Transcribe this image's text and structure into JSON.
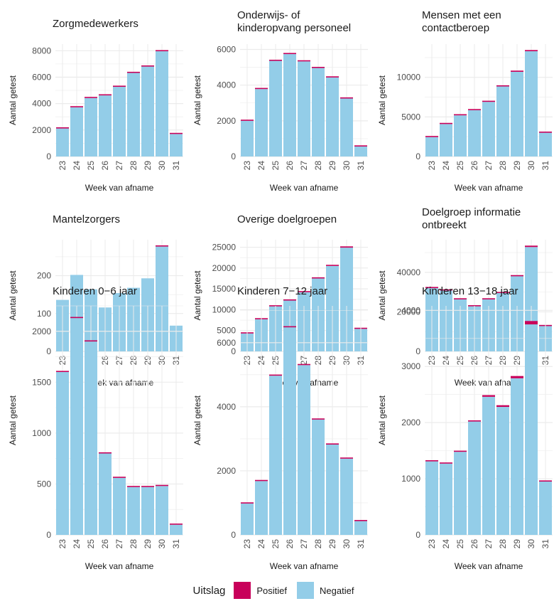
{
  "colors": {
    "positive": "#C8005A",
    "negative": "#93CDE8",
    "grid": "#EBEBEB"
  },
  "legend": {
    "title": "Uitslag",
    "positive_label": "Positief",
    "negative_label": "Negatief",
    "position": "bottom"
  },
  "chart_data": [
    {
      "type": "bar",
      "title": [
        "Zorgmedewerkers"
      ],
      "xlabel": "Week van afname",
      "ylabel": "Aantal getest",
      "categories": [
        "23",
        "24",
        "25",
        "26",
        "27",
        "28",
        "29",
        "30",
        "31"
      ],
      "yticks": [
        0,
        2000,
        4000,
        6000,
        8000
      ],
      "ylim": [
        0,
        8500
      ],
      "series": [
        {
          "name": "Negatief",
          "values": [
            2120,
            3720,
            4420,
            4620,
            5270,
            6320,
            6800,
            7960,
            1700
          ]
        },
        {
          "name": "Positief",
          "values": [
            20,
            60,
            40,
            40,
            40,
            40,
            80,
            60,
            20
          ]
        }
      ]
    },
    {
      "type": "bar",
      "title": [
        "Onderwijs- of",
        "kinderopvang personeel"
      ],
      "xlabel": "Week van afname",
      "ylabel": "Aantal getest",
      "categories": [
        "23",
        "24",
        "25",
        "26",
        "27",
        "28",
        "29",
        "30",
        "31"
      ],
      "yticks": [
        0,
        2000,
        4000,
        6000
      ],
      "ylim": [
        0,
        6300
      ],
      "series": [
        {
          "name": "Negatief",
          "values": [
            2000,
            3780,
            5360,
            5740,
            5330,
            4960,
            4430,
            3250,
            560
          ]
        },
        {
          "name": "Positief",
          "values": [
            10,
            20,
            30,
            30,
            30,
            30,
            30,
            50,
            5
          ]
        }
      ]
    },
    {
      "type": "bar",
      "title": [
        "Mensen met een",
        "contactberoep"
      ],
      "xlabel": "Week van afname",
      "ylabel": "Aantal getest",
      "categories": [
        "23",
        "24",
        "25",
        "26",
        "27",
        "28",
        "29",
        "30",
        "31"
      ],
      "yticks": [
        0,
        5000,
        10000
      ],
      "ylim": [
        0,
        14200
      ],
      "series": [
        {
          "name": "Negatief",
          "values": [
            2450,
            4100,
            5200,
            5850,
            6900,
            8850,
            10700,
            13300,
            3000
          ]
        },
        {
          "name": "Positief",
          "values": [
            20,
            60,
            50,
            50,
            50,
            60,
            150,
            150,
            40
          ]
        }
      ]
    },
    {
      "type": "bar",
      "title": [
        "Mantelzorgers"
      ],
      "xlabel": "Week van afname",
      "ylabel": "Aantal getest",
      "categories": [
        "23",
        "24",
        "25",
        "26",
        "27",
        "28",
        "29",
        "30",
        "31"
      ],
      "yticks": [
        0,
        100,
        200
      ],
      "ylim": [
        0,
        295
      ],
      "series": [
        {
          "name": "Negatief",
          "values": [
            136,
            202,
            164,
            116,
            154,
            168,
            193,
            277,
            68
          ]
        },
        {
          "name": "Positief",
          "values": [
            0,
            0,
            0,
            0,
            0,
            0,
            0,
            2,
            0
          ]
        }
      ]
    },
    {
      "type": "bar",
      "title": [
        "Overige doelgroepen"
      ],
      "xlabel": "Week van afname",
      "ylabel": "Aantal getest",
      "categories": [
        "23",
        "24",
        "25",
        "26",
        "27",
        "28",
        "29",
        "30",
        "31"
      ],
      "yticks": [
        0,
        5000,
        10000,
        15000,
        20000,
        25000
      ],
      "ylim": [
        0,
        26800
      ],
      "series": [
        {
          "name": "Negatief",
          "values": [
            4300,
            7700,
            10800,
            12200,
            14200,
            17500,
            20500,
            24900,
            5400
          ]
        },
        {
          "name": "Positief",
          "values": [
            60,
            80,
            80,
            80,
            80,
            100,
            200,
            300,
            30
          ]
        }
      ]
    },
    {
      "type": "bar",
      "title": [
        "Doelgroep informatie",
        "ontbreekt"
      ],
      "xlabel": "Week van afname",
      "ylabel": "Aantal getest",
      "categories": [
        "23",
        "24",
        "25",
        "26",
        "27",
        "28",
        "29",
        "30",
        "31"
      ],
      "yticks": [
        0,
        20000,
        40000
      ],
      "ylim": [
        0,
        56500
      ],
      "series": [
        {
          "name": "Negatief",
          "values": [
            32000,
            30800,
            26300,
            22800,
            26300,
            29500,
            38000,
            52800,
            12800
          ]
        },
        {
          "name": "Positief",
          "values": [
            600,
            500,
            200,
            200,
            200,
            400,
            600,
            700,
            100
          ]
        }
      ]
    },
    {
      "type": "bar",
      "title": [
        "Kinderen 0−6 jaar"
      ],
      "xlabel": "Week van afname",
      "ylabel": "Aantal getest",
      "categories": [
        "23",
        "24",
        "25",
        "26",
        "27",
        "28",
        "29",
        "30",
        "31"
      ],
      "yticks": [
        0,
        500,
        1000,
        1500,
        2000
      ],
      "ylim": [
        0,
        2250
      ],
      "series": [
        {
          "name": "Negatief",
          "values": [
            1600,
            2130,
            1900,
            800,
            560,
            470,
            470,
            480,
            100
          ]
        },
        {
          "name": "Positief",
          "values": [
            10,
            10,
            10,
            5,
            5,
            5,
            5,
            5,
            2
          ]
        }
      ]
    },
    {
      "type": "bar",
      "title": [
        "Kinderen 7−12 jaar"
      ],
      "xlabel": "Week van afname",
      "ylabel": "Aantal getest",
      "categories": [
        "23",
        "24",
        "25",
        "26",
        "27",
        "28",
        "29",
        "30",
        "31"
      ],
      "yticks": [
        0,
        2000,
        4000,
        6000
      ],
      "ylim": [
        0,
        7150
      ],
      "series": [
        {
          "name": "Negatief",
          "values": [
            980,
            1680,
            4970,
            6480,
            5300,
            3600,
            2820,
            2380,
            430
          ]
        },
        {
          "name": "Positief",
          "values": [
            5,
            5,
            10,
            10,
            10,
            5,
            5,
            5,
            2
          ]
        }
      ]
    },
    {
      "type": "bar",
      "title": [
        "Kinderen 13−18 jaar"
      ],
      "xlabel": "Week van afname",
      "ylabel": "Aantal getest",
      "categories": [
        "23",
        "24",
        "25",
        "26",
        "27",
        "28",
        "29",
        "30",
        "31"
      ],
      "yticks": [
        0,
        1000,
        2000,
        3000,
        4000
      ],
      "ylim": [
        0,
        4080
      ],
      "series": [
        {
          "name": "Negatief",
          "values": [
            1310,
            1270,
            1480,
            2020,
            2460,
            2280,
            2790,
            3750,
            950
          ]
        },
        {
          "name": "Positief",
          "values": [
            20,
            20,
            20,
            20,
            30,
            30,
            40,
            60,
            10
          ]
        }
      ]
    }
  ]
}
